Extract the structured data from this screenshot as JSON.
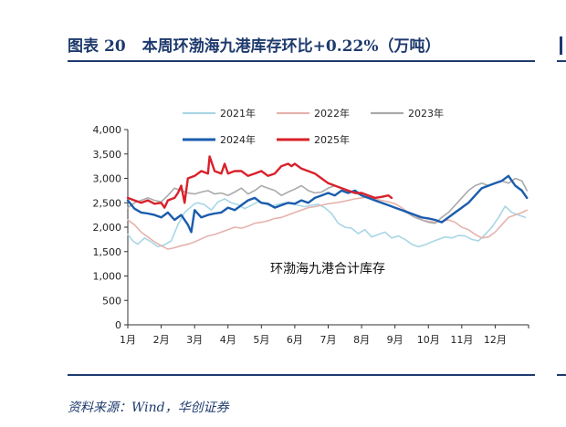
{
  "header": {
    "label": "图表",
    "number": "20",
    "title": "本周环渤海九港库存环比+0.22%（万吨）"
  },
  "source": "资料来源：Wind，华创证券",
  "chart_data": {
    "type": "line",
    "title": "本周环渤海九港库存环比+0.22%（万吨）",
    "annotation": "环渤海九港合计库存",
    "xlabel": "",
    "ylabel": "",
    "x_ticks": [
      "1月",
      "2月",
      "3月",
      "4月",
      "5月",
      "6月",
      "7月",
      "8月",
      "9月",
      "10月",
      "11月",
      "12月"
    ],
    "y_ticks": [
      "0",
      "500",
      "1,000",
      "1,500",
      "2,000",
      "2,500",
      "3,000",
      "3,500",
      "4,000"
    ],
    "xlim": [
      0,
      12
    ],
    "ylim": [
      0,
      4000
    ],
    "grid": false,
    "legend_position": "top",
    "series": [
      {
        "name": "2021年",
        "color": "#a9d6e5",
        "width": 1.6,
        "x": [
          0,
          0.15,
          0.3,
          0.5,
          0.7,
          0.9,
          1.1,
          1.3,
          1.5,
          1.7,
          1.9,
          2.0,
          2.1,
          2.3,
          2.5,
          2.7,
          2.9,
          3.1,
          3.3,
          3.5,
          3.7,
          3.9,
          4.1,
          4.3,
          4.5,
          4.7,
          4.9,
          5.1,
          5.3,
          5.5,
          5.7,
          5.9,
          6.1,
          6.3,
          6.5,
          6.7,
          6.9,
          7.1,
          7.3,
          7.5,
          7.7,
          7.9,
          8.1,
          8.3,
          8.5,
          8.7,
          8.9,
          9.1,
          9.3,
          9.5,
          9.7,
          9.9,
          10.1,
          10.3,
          10.5,
          10.7,
          10.9,
          11.1,
          11.3,
          11.5,
          11.7,
          11.9
        ],
        "values": [
          1850,
          1720,
          1650,
          1780,
          1700,
          1600,
          1640,
          1720,
          2050,
          2300,
          2420,
          2480,
          2500,
          2460,
          2350,
          2520,
          2580,
          2500,
          2460,
          2380,
          2450,
          2520,
          2480,
          2430,
          2470,
          2500,
          2480,
          2450,
          2420,
          2450,
          2470,
          2400,
          2280,
          2080,
          2000,
          1980,
          1870,
          1950,
          1800,
          1850,
          1900,
          1780,
          1820,
          1750,
          1650,
          1600,
          1640,
          1700,
          1750,
          1800,
          1780,
          1830,
          1820,
          1750,
          1720,
          1850,
          2000,
          2200,
          2430,
          2300,
          2250,
          2200
        ]
      },
      {
        "name": "2022年",
        "color": "#e6b3ae",
        "width": 1.6,
        "x": [
          0,
          0.2,
          0.4,
          0.6,
          0.8,
          1.0,
          1.2,
          1.4,
          1.6,
          1.8,
          2.0,
          2.2,
          2.4,
          2.6,
          2.8,
          3.0,
          3.2,
          3.4,
          3.6,
          3.8,
          4.0,
          4.2,
          4.4,
          4.6,
          4.8,
          5.0,
          5.2,
          5.4,
          5.6,
          5.8,
          6.0,
          6.2,
          6.4,
          6.6,
          6.8,
          7.0,
          7.2,
          7.4,
          7.6,
          7.8,
          8.0,
          8.2,
          8.4,
          8.6,
          8.8,
          9.0,
          9.2,
          9.4,
          9.6,
          9.8,
          10.0,
          10.2,
          10.4,
          10.6,
          10.8,
          11.0,
          11.2,
          11.4,
          11.6,
          11.8,
          11.95
        ],
        "values": [
          2150,
          2050,
          1900,
          1800,
          1700,
          1620,
          1550,
          1580,
          1620,
          1650,
          1700,
          1760,
          1820,
          1850,
          1900,
          1950,
          2000,
          1980,
          2020,
          2080,
          2100,
          2130,
          2180,
          2200,
          2250,
          2300,
          2350,
          2400,
          2420,
          2450,
          2480,
          2500,
          2520,
          2550,
          2580,
          2600,
          2620,
          2580,
          2550,
          2520,
          2480,
          2400,
          2300,
          2250,
          2150,
          2120,
          2100,
          2120,
          2150,
          2100,
          2000,
          1950,
          1850,
          1780,
          1800,
          1900,
          2050,
          2200,
          2250,
          2300,
          2350
        ]
      },
      {
        "name": "2023年",
        "color": "#aaaaaa",
        "width": 1.6,
        "x": [
          0,
          0.2,
          0.4,
          0.6,
          0.8,
          1.0,
          1.2,
          1.4,
          1.6,
          1.8,
          2.0,
          2.2,
          2.4,
          2.6,
          2.8,
          3.0,
          3.2,
          3.4,
          3.6,
          3.8,
          4.0,
          4.2,
          4.4,
          4.6,
          4.8,
          5.0,
          5.2,
          5.4,
          5.6,
          5.8,
          6.0,
          6.2,
          6.4,
          6.6,
          6.8,
          7.0,
          7.2,
          7.4,
          7.6,
          7.8,
          8.0,
          8.2,
          8.4,
          8.6,
          8.8,
          9.0,
          9.2,
          9.4,
          9.6,
          9.8,
          10.0,
          10.2,
          10.4,
          10.6,
          10.8,
          11.0,
          11.2,
          11.4,
          11.6,
          11.8,
          11.95
        ],
        "values": [
          2400,
          2500,
          2550,
          2600,
          2550,
          2520,
          2650,
          2800,
          2750,
          2700,
          2680,
          2720,
          2750,
          2680,
          2700,
          2650,
          2720,
          2800,
          2680,
          2750,
          2850,
          2800,
          2750,
          2650,
          2720,
          2780,
          2850,
          2750,
          2700,
          2720,
          2800,
          2850,
          2800,
          2750,
          2700,
          2650,
          2600,
          2550,
          2500,
          2450,
          2400,
          2350,
          2280,
          2200,
          2150,
          2100,
          2080,
          2200,
          2300,
          2450,
          2600,
          2750,
          2850,
          2900,
          2850,
          2900,
          2950,
          2900,
          3000,
          2950,
          2750
        ]
      },
      {
        "name": "2024年",
        "color": "#1a5cad",
        "width": 2.4,
        "x": [
          0,
          0.2,
          0.4,
          0.6,
          0.8,
          1.0,
          1.2,
          1.4,
          1.6,
          1.8,
          1.9,
          2.0,
          2.2,
          2.4,
          2.6,
          2.8,
          3.0,
          3.2,
          3.4,
          3.6,
          3.8,
          4.0,
          4.2,
          4.4,
          4.6,
          4.8,
          5.0,
          5.2,
          5.4,
          5.6,
          5.8,
          6.0,
          6.2,
          6.4,
          6.6,
          6.8,
          7.0,
          7.2,
          7.4,
          7.6,
          7.8,
          8.0,
          8.2,
          8.4,
          8.6,
          8.8,
          9.0,
          9.2,
          9.4,
          9.6,
          9.8,
          10.0,
          10.2,
          10.4,
          10.6,
          10.8,
          11.0,
          11.2,
          11.4,
          11.6,
          11.8,
          11.95
        ],
        "values": [
          2550,
          2380,
          2300,
          2280,
          2250,
          2200,
          2300,
          2150,
          2250,
          2050,
          1900,
          2350,
          2200,
          2250,
          2280,
          2300,
          2400,
          2350,
          2450,
          2550,
          2600,
          2500,
          2480,
          2400,
          2450,
          2500,
          2480,
          2550,
          2500,
          2600,
          2650,
          2700,
          2650,
          2750,
          2700,
          2750,
          2650,
          2600,
          2550,
          2500,
          2450,
          2400,
          2350,
          2300,
          2250,
          2200,
          2180,
          2150,
          2100,
          2200,
          2300,
          2400,
          2500,
          2650,
          2800,
          2850,
          2900,
          2950,
          3050,
          2850,
          2750,
          2600
        ]
      },
      {
        "name": "2025年",
        "color": "#d9212a",
        "width": 2.4,
        "x": [
          0,
          0.2,
          0.4,
          0.6,
          0.8,
          1.0,
          1.1,
          1.2,
          1.4,
          1.5,
          1.6,
          1.7,
          1.8,
          2.0,
          2.2,
          2.4,
          2.45,
          2.6,
          2.8,
          2.9,
          3.0,
          3.2,
          3.4,
          3.6,
          3.8,
          4.0,
          4.2,
          4.4,
          4.6,
          4.8,
          4.9,
          5.0,
          5.2,
          5.4,
          5.6,
          5.8,
          6.0,
          6.2,
          6.4,
          6.6,
          6.8,
          7.0,
          7.2,
          7.4,
          7.6,
          7.8,
          7.9
        ],
        "values": [
          2600,
          2550,
          2500,
          2550,
          2480,
          2500,
          2400,
          2550,
          2600,
          2700,
          2850,
          2500,
          3000,
          3050,
          3150,
          3100,
          3450,
          3150,
          3100,
          3300,
          3100,
          3150,
          3150,
          3050,
          3100,
          3150,
          3050,
          3100,
          3250,
          3300,
          3250,
          3300,
          3200,
          3150,
          3100,
          3000,
          2900,
          2850,
          2800,
          2750,
          2700,
          2700,
          2650,
          2600,
          2620,
          2650,
          2600
        ]
      }
    ]
  }
}
